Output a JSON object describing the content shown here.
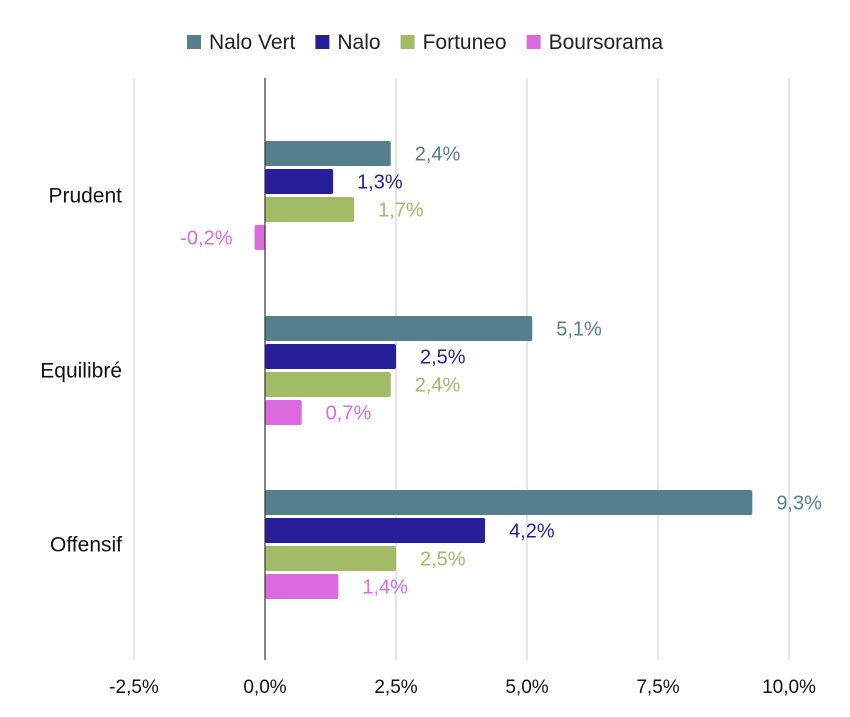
{
  "chart_data": {
    "type": "bar",
    "orientation": "horizontal",
    "categories": [
      "Prudent",
      "Equilibré",
      "Offensif"
    ],
    "series": [
      {
        "name": "Nalo Vert",
        "color": "#557f8c",
        "values": [
          2.4,
          5.1,
          9.3
        ],
        "labels": [
          "2,4%",
          "5,1%",
          "9,3%"
        ]
      },
      {
        "name": "Nalo",
        "color": "#271e99",
        "values": [
          1.3,
          2.5,
          4.2
        ],
        "labels": [
          "1,3%",
          "2,5%",
          "4,2%"
        ]
      },
      {
        "name": "Fortuneo",
        "color": "#a2bb66",
        "values": [
          1.7,
          2.4,
          2.5
        ],
        "labels": [
          "1,7%",
          "2,4%",
          "2,5%"
        ]
      },
      {
        "name": "Boursorama",
        "color": "#dc6adf",
        "values": [
          -0.2,
          0.7,
          1.4
        ],
        "labels": [
          "-0,2%",
          "0,7%",
          "1,4%"
        ]
      }
    ],
    "x_ticks": [
      -2.5,
      0,
      2.5,
      5,
      7.5,
      10
    ],
    "x_tick_labels": [
      "-2,5%",
      "0,0%",
      "2,5%",
      "5,0%",
      "7,5%",
      "10,0%"
    ],
    "xlim": [
      -2.5,
      10
    ],
    "grid": "vertical",
    "legend_position": "top"
  }
}
